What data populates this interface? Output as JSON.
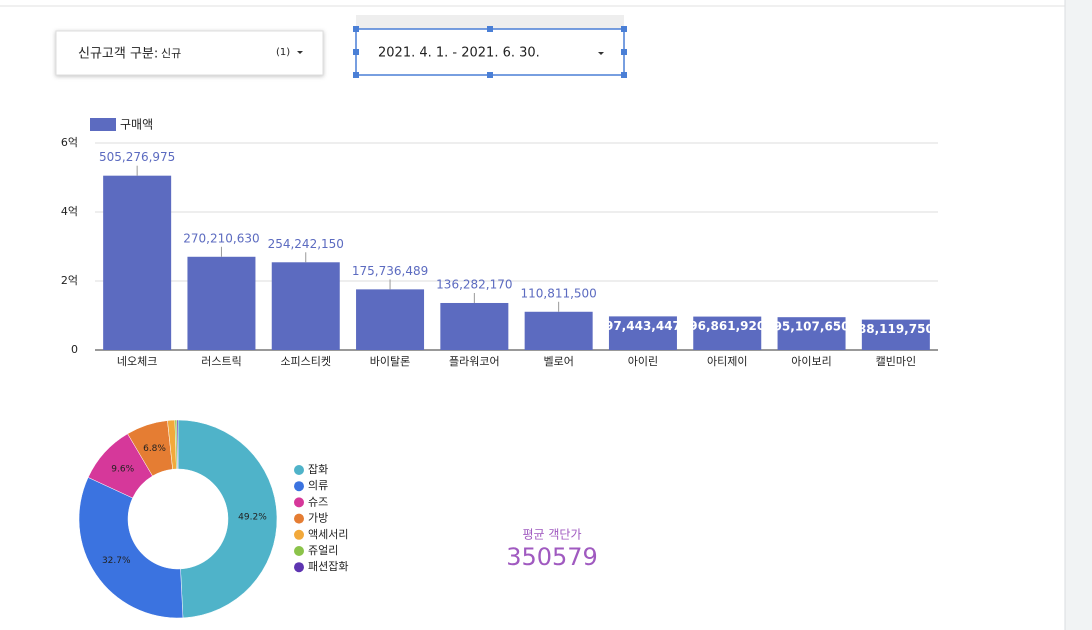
{
  "filter": {
    "label": "신규고객 구분:",
    "value": "신규",
    "count": "(1)"
  },
  "date_range": {
    "value": "2021. 4. 1. - 2021. 6. 30."
  },
  "scorecard": {
    "label": "평균 객단가",
    "value": 350579
  },
  "chart_data": [
    {
      "type": "bar",
      "categories": [
        "네오체크",
        "러스트릭",
        "소피스티켓",
        "바이탈론",
        "플라워코어",
        "벨로어",
        "아이린",
        "아티제이",
        "아이보리",
        "캘빈마인"
      ],
      "series": [
        {
          "name": "구매액",
          "color": "#5c6bc0",
          "values": [
            505276975,
            270210630,
            254242150,
            175736489,
            136282170,
            110811500,
            97443447,
            96861920,
            95107650,
            88119750
          ],
          "value_labels": [
            "505,276,975",
            "270,210,630",
            "254,242,150",
            "175,736,489",
            "136,282,170",
            "110,811,500",
            "97,443,447",
            "96,861,920",
            "95,107,650",
            "88,119,750"
          ]
        }
      ],
      "ylim": [
        0,
        600000000
      ],
      "yticks": [
        0,
        {
          "value": 200000000,
          "label": "2억"
        },
        {
          "value": 400000000,
          "label": "4억"
        },
        {
          "value": 600000000,
          "label": "6억"
        }
      ],
      "grid": true,
      "legend": "top-left"
    },
    {
      "type": "donut",
      "categories": [
        "잡화",
        "의류",
        "슈즈",
        "가방",
        "액세서리",
        "쥬얼리",
        "패션잡화"
      ],
      "values": [
        49.2,
        32.7,
        9.6,
        6.8,
        1.2,
        0.3,
        0.2
      ],
      "value_labels": [
        "49.2%",
        "32.7%",
        "9.6%",
        "6.8%",
        null,
        null,
        null
      ],
      "colors": [
        "#4fb3c9",
        "#3b73e0",
        "#d6389a",
        "#e57d33",
        "#f2a93b",
        "#8bc34a",
        "#5e35b1"
      ],
      "legend": "right"
    }
  ]
}
